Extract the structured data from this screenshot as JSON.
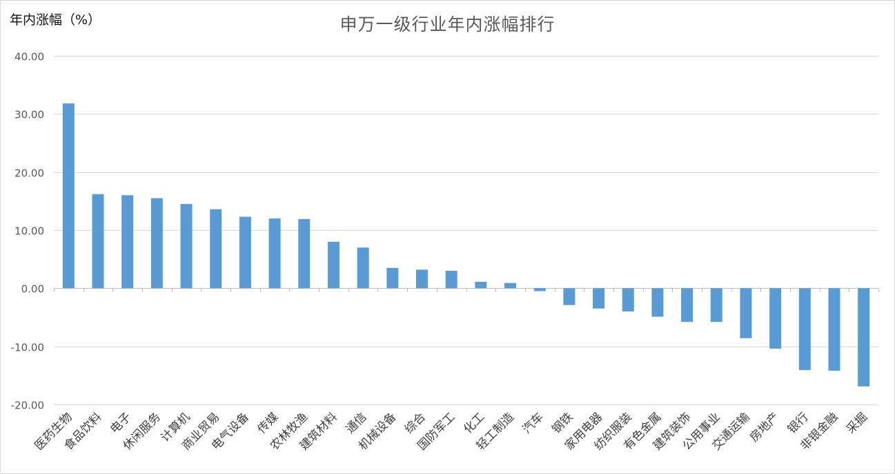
{
  "chart_data": {
    "type": "bar",
    "title": "申万一级行业年内涨幅排行",
    "ylabel": "年内涨幅（%）",
    "xlabel": "",
    "ylim": [
      -20,
      40
    ],
    "yticks": [
      "40.00",
      "30.00",
      "20.00",
      "10.00",
      "0.00",
      "-10.00",
      "-20.00"
    ],
    "grid": true,
    "bar_color": "#5b9bd5",
    "categories": [
      "医药生物",
      "食品饮料",
      "电子",
      "休闲服务",
      "计算机",
      "商业贸易",
      "电气设备",
      "传媒",
      "农林牧渔",
      "建筑材料",
      "通信",
      "机械设备",
      "综合",
      "国防军工",
      "化工",
      "轻工制造",
      "汽车",
      "钢铁",
      "家用电器",
      "纺织服装",
      "有色金属",
      "建筑装饰",
      "公用事业",
      "交通运输",
      "房地产",
      "银行",
      "非银金融",
      "采掘"
    ],
    "values": [
      31.8,
      16.2,
      16.0,
      15.5,
      14.5,
      13.6,
      12.3,
      12.0,
      11.9,
      8.0,
      7.0,
      3.5,
      3.2,
      3.0,
      1.1,
      0.9,
      -0.5,
      -2.9,
      -3.5,
      -4.0,
      -4.9,
      -5.8,
      -5.8,
      -8.6,
      -10.4,
      -14.1,
      -14.2,
      -16.9
    ]
  }
}
